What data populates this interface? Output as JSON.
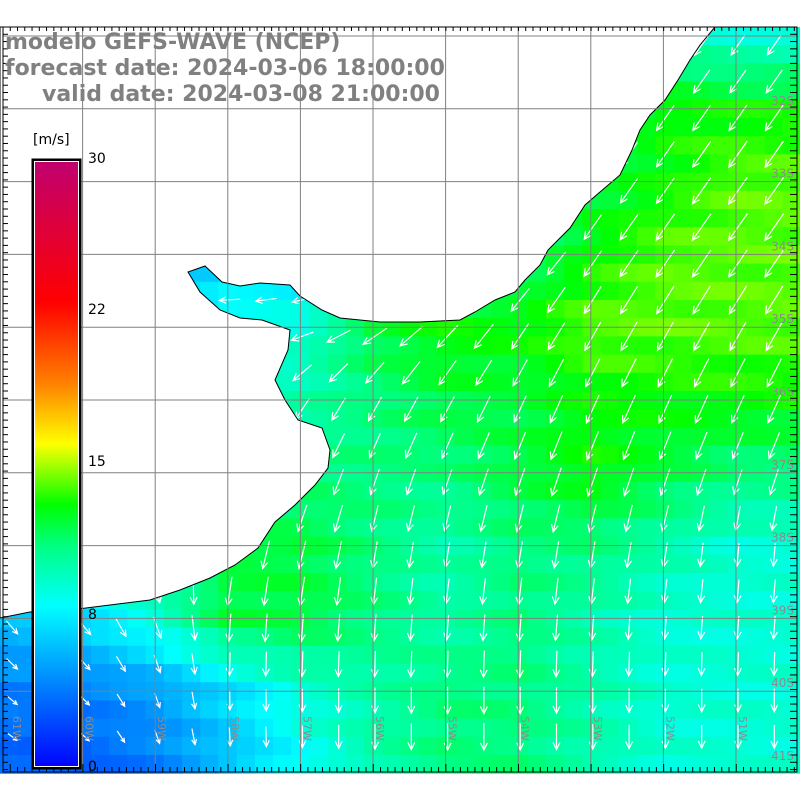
{
  "title": {
    "model": "modelo GEFS-WAVE (NCEP)",
    "forecast": "forecast date: 2024-03-06 18:00:00",
    "valid": "valid date: 2024-03-08 21:00:00"
  },
  "colorbar": {
    "unit": "[m/s]",
    "ticks": [
      "30",
      "22",
      "15",
      "8",
      "0"
    ],
    "tick_values": [
      30,
      22,
      15,
      8,
      0
    ],
    "range": [
      0,
      30
    ],
    "stops": [
      {
        "v": 0,
        "c": "#0000ff"
      },
      {
        "v": 4,
        "c": "#0080ff"
      },
      {
        "v": 8,
        "c": "#00ffff"
      },
      {
        "v": 11,
        "c": "#00ff80"
      },
      {
        "v": 13,
        "c": "#00ff00"
      },
      {
        "v": 16,
        "c": "#ffff00"
      },
      {
        "v": 19,
        "c": "#ff8000"
      },
      {
        "v": 23,
        "c": "#ff0000"
      },
      {
        "v": 30,
        "c": "#c00070"
      }
    ]
  },
  "axes": {
    "lon_labels": [
      "61W",
      "60W",
      "59W",
      "58W",
      "57W",
      "56W",
      "55W",
      "54W",
      "53W",
      "52W",
      "51W"
    ],
    "lat_labels": [
      "32S",
      "33S",
      "34S",
      "35S",
      "36S",
      "37S",
      "38S",
      "39S",
      "40S",
      "41S"
    ]
  },
  "field": {
    "lats": [
      31,
      32,
      33,
      34,
      35,
      36,
      37,
      38,
      39,
      40,
      41
    ],
    "lons": [
      61,
      60,
      59,
      58,
      57,
      56,
      55,
      54,
      53,
      52,
      51
    ],
    "speed_ms": [
      [
        5,
        5,
        5,
        5,
        5,
        5,
        5,
        5,
        9,
        10,
        9
      ],
      [
        6,
        6,
        6,
        6,
        6,
        6,
        6,
        6,
        11,
        13,
        13
      ],
      [
        6,
        6,
        6,
        6,
        6,
        6,
        6,
        10,
        12,
        13,
        14
      ],
      [
        6,
        6,
        6,
        6,
        6,
        8,
        9,
        11,
        13,
        14,
        14
      ],
      [
        6,
        6,
        6,
        9,
        9,
        12,
        13,
        13,
        14,
        14,
        14
      ],
      [
        7,
        7,
        7,
        9,
        10,
        11,
        12,
        12,
        13,
        13,
        13
      ],
      [
        7,
        8,
        8,
        10,
        11,
        11,
        11,
        12,
        13,
        12,
        11
      ],
      [
        8,
        8,
        10,
        12,
        12,
        11,
        10,
        11,
        11,
        10,
        9
      ],
      [
        6,
        7,
        9,
        12,
        12,
        11,
        10,
        11,
        10,
        9,
        9
      ],
      [
        4,
        4,
        5,
        7,
        9,
        10,
        11,
        11,
        10,
        9,
        9
      ],
      [
        3,
        3,
        4,
        6,
        8,
        10,
        11,
        11,
        10,
        9,
        9
      ]
    ],
    "direction_deg": [
      [
        215,
        215,
        215,
        215,
        215,
        215,
        215,
        215,
        215,
        215,
        215
      ],
      [
        270,
        270,
        270,
        270,
        270,
        270,
        250,
        225,
        215,
        215,
        215
      ],
      [
        270,
        270,
        270,
        270,
        270,
        265,
        250,
        230,
        215,
        215,
        215
      ],
      [
        270,
        270,
        270,
        270,
        265,
        255,
        240,
        225,
        215,
        215,
        215
      ],
      [
        260,
        260,
        265,
        265,
        255,
        240,
        225,
        215,
        210,
        210,
        210
      ],
      [
        230,
        230,
        230,
        225,
        215,
        210,
        210,
        205,
        205,
        205,
        205
      ],
      [
        200,
        200,
        210,
        210,
        205,
        200,
        200,
        200,
        200,
        200,
        200
      ],
      [
        170,
        170,
        180,
        195,
        195,
        190,
        190,
        190,
        190,
        190,
        185
      ],
      [
        140,
        140,
        160,
        185,
        185,
        185,
        185,
        185,
        185,
        185,
        185
      ],
      [
        130,
        135,
        160,
        180,
        180,
        180,
        180,
        180,
        180,
        180,
        180
      ],
      [
        125,
        130,
        160,
        175,
        180,
        180,
        180,
        180,
        180,
        180,
        180
      ]
    ]
  }
}
